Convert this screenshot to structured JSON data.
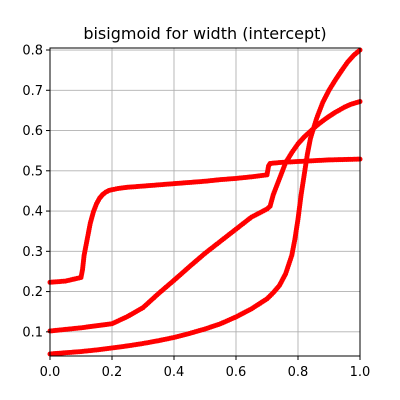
{
  "chart_data": {
    "type": "scatter",
    "title": "bisigmoid for width (intercept)",
    "xlabel": "",
    "ylabel": "",
    "xlim": [
      0.0,
      1.0
    ],
    "ylim": [
      0.04,
      0.805
    ],
    "grid": true,
    "marker_color": "#ff0000",
    "xticks": [
      0.0,
      0.2,
      0.4,
      0.6,
      0.8,
      1.0
    ],
    "xtick_labels": [
      "0.0",
      "0.2",
      "0.4",
      "0.6",
      "0.8",
      "1.0"
    ],
    "yticks": [
      0.1,
      0.2,
      0.3,
      0.4,
      0.5,
      0.6,
      0.7,
      0.8
    ],
    "ytick_labels": [
      "0.1",
      "0.2",
      "0.3",
      "0.4",
      "0.5",
      "0.6",
      "0.7",
      "0.8"
    ],
    "series": [
      {
        "x": [
          0.0,
          0.05,
          0.1,
          0.105,
          0.11,
          0.12,
          0.13,
          0.14,
          0.15,
          0.16,
          0.17,
          0.18,
          0.19,
          0.2,
          0.22,
          0.25,
          0.3,
          0.35,
          0.4,
          0.45,
          0.5,
          0.55,
          0.6,
          0.65,
          0.7,
          0.705,
          0.71,
          0.72,
          0.75,
          0.8,
          0.85,
          0.9,
          0.95,
          1.0
        ],
        "y": [
          0.223,
          0.226,
          0.235,
          0.255,
          0.29,
          0.33,
          0.37,
          0.398,
          0.418,
          0.432,
          0.441,
          0.447,
          0.451,
          0.453,
          0.456,
          0.459,
          0.462,
          0.465,
          0.468,
          0.471,
          0.474,
          0.478,
          0.481,
          0.485,
          0.49,
          0.512,
          0.518,
          0.519,
          0.521,
          0.523,
          0.525,
          0.527,
          0.528,
          0.529
        ]
      },
      {
        "x": [
          0.0,
          0.05,
          0.1,
          0.15,
          0.2,
          0.25,
          0.3,
          0.35,
          0.4,
          0.45,
          0.5,
          0.55,
          0.6,
          0.65,
          0.7,
          0.71,
          0.72,
          0.74,
          0.76,
          0.78,
          0.8,
          0.82,
          0.84,
          0.86,
          0.88,
          0.9,
          0.92,
          0.95,
          0.97,
          1.0
        ],
        "y": [
          0.102,
          0.106,
          0.11,
          0.115,
          0.12,
          0.138,
          0.16,
          0.195,
          0.228,
          0.262,
          0.295,
          0.325,
          0.355,
          0.385,
          0.405,
          0.412,
          0.44,
          0.48,
          0.52,
          0.545,
          0.567,
          0.584,
          0.598,
          0.612,
          0.624,
          0.635,
          0.645,
          0.658,
          0.665,
          0.672
        ]
      },
      {
        "x": [
          0.0,
          0.05,
          0.1,
          0.15,
          0.2,
          0.25,
          0.3,
          0.35,
          0.4,
          0.45,
          0.5,
          0.55,
          0.6,
          0.65,
          0.7,
          0.72,
          0.74,
          0.76,
          0.78,
          0.79,
          0.8,
          0.81,
          0.82,
          0.83,
          0.84,
          0.86,
          0.88,
          0.9,
          0.92,
          0.94,
          0.96,
          0.98,
          1.0
        ],
        "y": [
          0.045,
          0.048,
          0.051,
          0.055,
          0.06,
          0.065,
          0.071,
          0.078,
          0.086,
          0.096,
          0.107,
          0.12,
          0.137,
          0.157,
          0.182,
          0.197,
          0.215,
          0.244,
          0.29,
          0.33,
          0.38,
          0.44,
          0.49,
          0.54,
          0.58,
          0.63,
          0.67,
          0.7,
          0.725,
          0.748,
          0.77,
          0.787,
          0.8
        ]
      }
    ]
  }
}
